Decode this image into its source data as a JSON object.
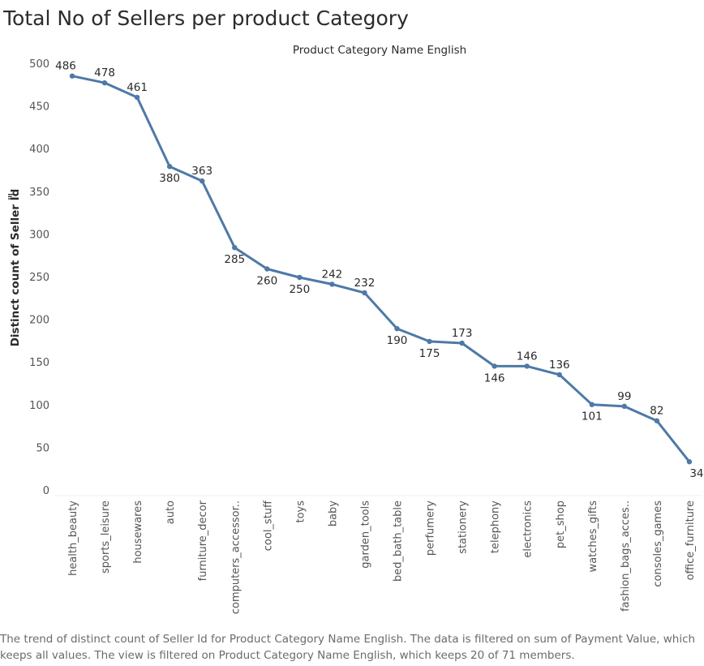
{
  "title": "Total No of Sellers per product Category",
  "chart_data": {
    "type": "line",
    "title": "Total No of Sellers per product Category",
    "xlabel": "Product Category Name English",
    "ylabel": "Distinct count of Seller Id",
    "categories": [
      "health_beauty",
      "sports_leisure",
      "housewares",
      "auto",
      "furniture_decor",
      "computers_accessor..",
      "cool_stuff",
      "toys",
      "baby",
      "garden_tools",
      "bed_bath_table",
      "perfumery",
      "stationery",
      "telephony",
      "electronics",
      "pet_shop",
      "watches_gifts",
      "fashion_bags_acces..",
      "consoles_games",
      "office_furniture"
    ],
    "values": [
      486,
      478,
      461,
      380,
      363,
      285,
      260,
      250,
      242,
      232,
      190,
      175,
      173,
      146,
      146,
      136,
      101,
      99,
      82,
      34
    ],
    "yticks": [
      0,
      50,
      100,
      150,
      200,
      250,
      300,
      350,
      400,
      450,
      500
    ],
    "ylim": [
      0,
      510
    ],
    "grid": false,
    "line_color": "#4e79a7"
  },
  "caption": "The trend of distinct count of Seller Id for Product Category Name English. The data is filtered on sum of Payment Value, which keeps all values. The view is filtered on Product Category Name English, which keeps 20 of 71 members."
}
